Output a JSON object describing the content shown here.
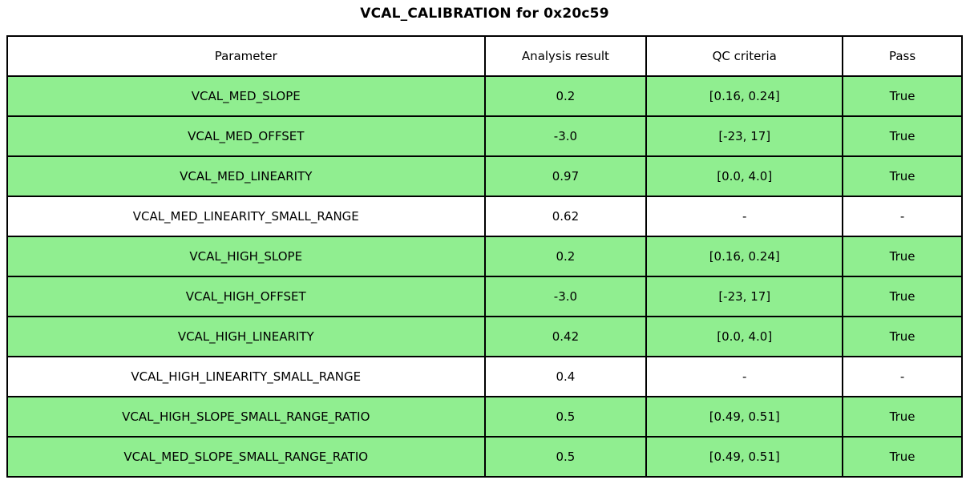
{
  "title": "VCAL_CALIBRATION for 0x20c59",
  "colors": {
    "pass_green": "#90EE90",
    "border": "#000000",
    "background": "#ffffff",
    "text": "#000000"
  },
  "table": {
    "columns": [
      "Parameter",
      "Analysis result",
      "QC criteria",
      "Pass"
    ],
    "rows": [
      {
        "parameter": "VCAL_MED_SLOPE",
        "result": "0.2",
        "qc": "[0.16, 0.24]",
        "pass": "True",
        "highlight": true
      },
      {
        "parameter": "VCAL_MED_OFFSET",
        "result": "-3.0",
        "qc": "[-23, 17]",
        "pass": "True",
        "highlight": true
      },
      {
        "parameter": "VCAL_MED_LINEARITY",
        "result": "0.97",
        "qc": "[0.0, 4.0]",
        "pass": "True",
        "highlight": true
      },
      {
        "parameter": "VCAL_MED_LINEARITY_SMALL_RANGE",
        "result": "0.62",
        "qc": "-",
        "pass": "-",
        "highlight": false
      },
      {
        "parameter": "VCAL_HIGH_SLOPE",
        "result": "0.2",
        "qc": "[0.16, 0.24]",
        "pass": "True",
        "highlight": true
      },
      {
        "parameter": "VCAL_HIGH_OFFSET",
        "result": "-3.0",
        "qc": "[-23, 17]",
        "pass": "True",
        "highlight": true
      },
      {
        "parameter": "VCAL_HIGH_LINEARITY",
        "result": "0.42",
        "qc": "[0.0, 4.0]",
        "pass": "True",
        "highlight": true
      },
      {
        "parameter": "VCAL_HIGH_LINEARITY_SMALL_RANGE",
        "result": "0.4",
        "qc": "-",
        "pass": "-",
        "highlight": false
      },
      {
        "parameter": "VCAL_HIGH_SLOPE_SMALL_RANGE_RATIO",
        "result": "0.5",
        "qc": "[0.49, 0.51]",
        "pass": "True",
        "highlight": true
      },
      {
        "parameter": "VCAL_MED_SLOPE_SMALL_RANGE_RATIO",
        "result": "0.5",
        "qc": "[0.49, 0.51]",
        "pass": "True",
        "highlight": true
      }
    ]
  },
  "chart_data": {
    "type": "table",
    "title": "VCAL_CALIBRATION for 0x20c59",
    "columns": [
      "Parameter",
      "Analysis result",
      "QC criteria",
      "Pass"
    ],
    "rows": [
      [
        "VCAL_MED_SLOPE",
        0.2,
        "[0.16, 0.24]",
        "True"
      ],
      [
        "VCAL_MED_OFFSET",
        -3.0,
        "[-23, 17]",
        "True"
      ],
      [
        "VCAL_MED_LINEARITY",
        0.97,
        "[0.0, 4.0]",
        "True"
      ],
      [
        "VCAL_MED_LINEARITY_SMALL_RANGE",
        0.62,
        "-",
        "-"
      ],
      [
        "VCAL_HIGH_SLOPE",
        0.2,
        "[0.16, 0.24]",
        "True"
      ],
      [
        "VCAL_HIGH_OFFSET",
        -3.0,
        "[-23, 17]",
        "True"
      ],
      [
        "VCAL_HIGH_LINEARITY",
        0.42,
        "[0.0, 4.0]",
        "True"
      ],
      [
        "VCAL_HIGH_LINEARITY_SMALL_RANGE",
        0.4,
        "-",
        "-"
      ],
      [
        "VCAL_HIGH_SLOPE_SMALL_RANGE_RATIO",
        0.5,
        "[0.49, 0.51]",
        "True"
      ],
      [
        "VCAL_MED_SLOPE_SMALL_RANGE_RATIO",
        0.5,
        "[0.49, 0.51]",
        "True"
      ]
    ],
    "row_highlight_green": [
      true,
      true,
      true,
      false,
      true,
      true,
      true,
      false,
      true,
      true
    ],
    "layout": "header row white, passing rows light green, non-QC rows white"
  }
}
